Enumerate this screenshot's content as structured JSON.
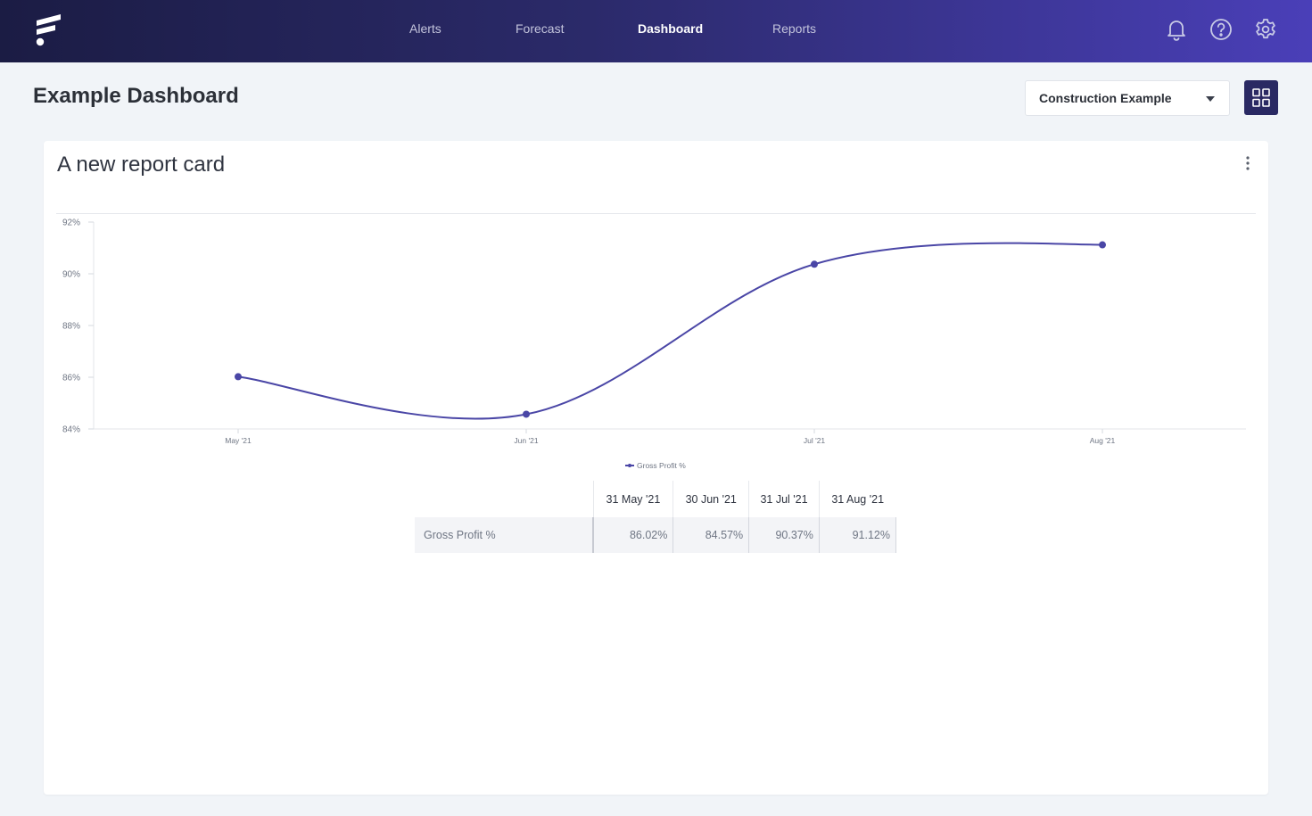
{
  "nav": {
    "items": [
      "Alerts",
      "Forecast",
      "Dashboard",
      "Reports"
    ],
    "active": "Dashboard",
    "icons": [
      "bell-icon",
      "help-icon",
      "gear-icon"
    ]
  },
  "header": {
    "title": "Example Dashboard",
    "selector_value": "Construction Example"
  },
  "card": {
    "title": "A new report card"
  },
  "colors": {
    "accent": "#4a46a6",
    "nav_gradient_start": "#1b1c44",
    "nav_gradient_end": "#4a3fb8"
  },
  "chart_data": {
    "type": "line",
    "categories": [
      "May '21",
      "Jun '21",
      "Jul '21",
      "Aug '21"
    ],
    "series": [
      {
        "name": "Gross Profit %",
        "values": [
          86.02,
          84.57,
          90.37,
          91.12
        ]
      }
    ],
    "ylim": [
      84,
      92
    ],
    "y_ticks": [
      "84%",
      "86%",
      "88%",
      "90%",
      "92%"
    ],
    "legend": "bottom-center",
    "grid": false
  },
  "table": {
    "columns": [
      "31 May '21",
      "30 Jun '21",
      "31 Jul '21",
      "31 Aug '21"
    ],
    "rows": [
      {
        "label": "Gross Profit %",
        "values": [
          "86.02%",
          "84.57%",
          "90.37%",
          "91.12%"
        ]
      }
    ]
  }
}
